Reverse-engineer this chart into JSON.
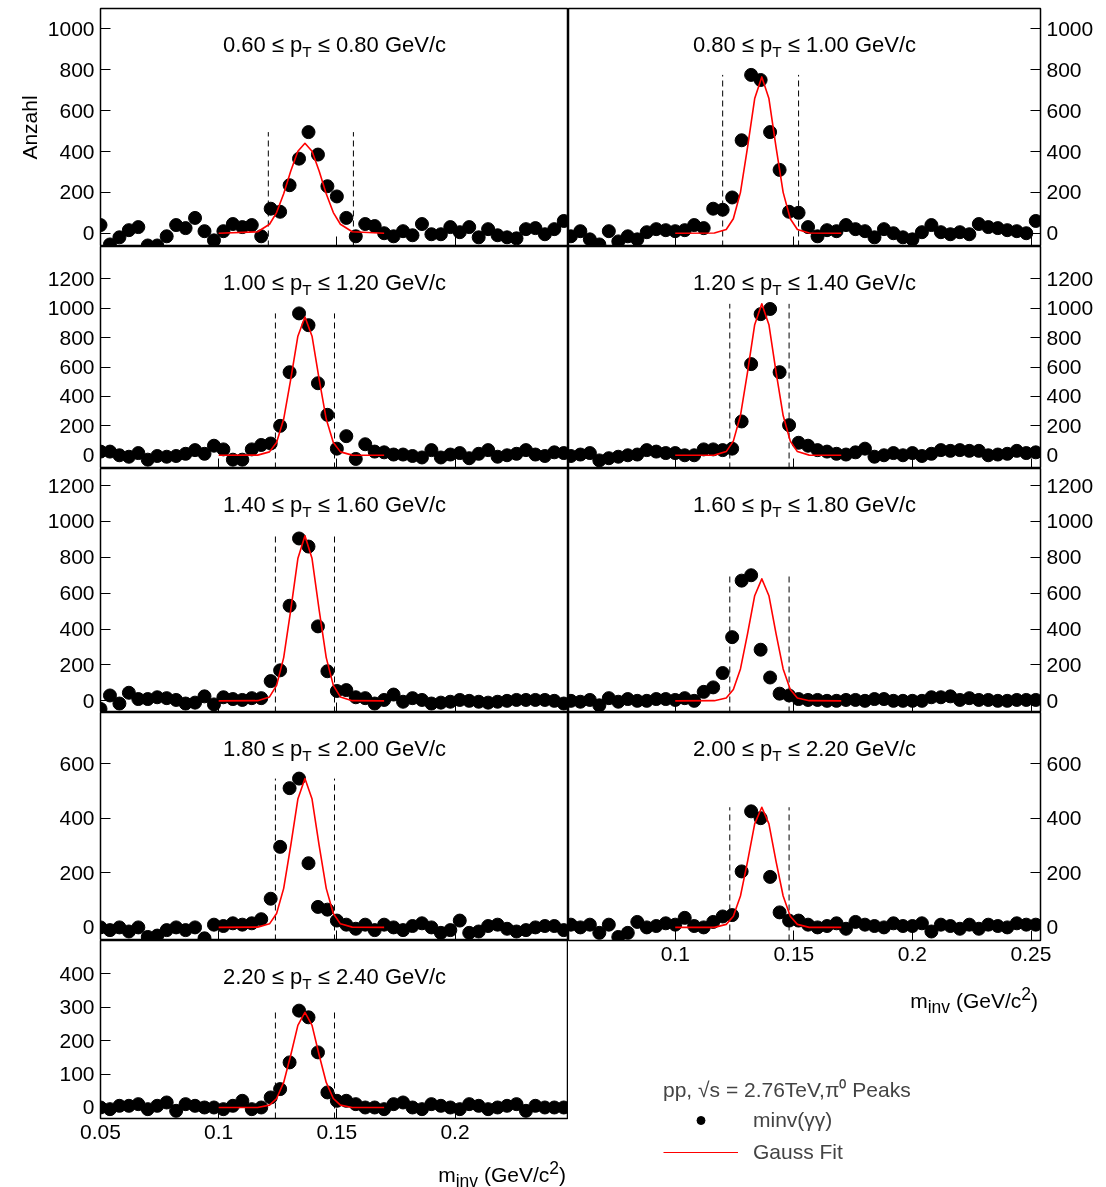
{
  "chart_data": [
    {
      "type": "scatter",
      "title": "0.60 ≤ p$_{T}$ ≤ 0.80 GeV/c",
      "ylabel": "Anzahl",
      "xlim": [
        0.05,
        0.248
      ],
      "ylim": [
        -65,
        1100
      ],
      "xticks": [
        0.05,
        0.1,
        0.15,
        0.2
      ],
      "yticks": [
        0,
        200,
        400,
        600,
        800,
        1000
      ],
      "tick_labels": "y",
      "series": [
        {
          "color": "#000000",
          "x": [
            0.05,
            0.054,
            0.058,
            0.062,
            0.066,
            0.07,
            0.074,
            0.078,
            0.082,
            0.086,
            0.09,
            0.094,
            0.098,
            0.102,
            0.106,
            0.11,
            0.114,
            0.118,
            0.122,
            0.126,
            0.13,
            0.134,
            0.138,
            0.142,
            0.146,
            0.15,
            0.154,
            0.158,
            0.162,
            0.166,
            0.17,
            0.174,
            0.178,
            0.182,
            0.186,
            0.19,
            0.194,
            0.198,
            0.202,
            0.206,
            0.21,
            0.214,
            0.218,
            0.222,
            0.226,
            0.23,
            0.234,
            0.238,
            0.242,
            0.246
          ],
          "marker": "circle",
          "values": [
            40,
            -55,
            -20,
            15,
            30,
            -60,
            -60,
            -15,
            40,
            25,
            75,
            10,
            -35,
            10,
            45,
            30,
            40,
            -15,
            120,
            105,
            235,
            365,
            495,
            385,
            230,
            180,
            75,
            -15,
            45,
            35,
            0,
            -15,
            10,
            -10,
            45,
            -5,
            -5,
            30,
            5,
            30,
            -20,
            20,
            -10,
            -20,
            -25,
            20,
            25,
            -5,
            20,
            60
          ]
        },
        {
          "type": "line",
          "color": "#ff0000",
          "x": [
            0.1,
            0.1165,
            0.1215,
            0.1245,
            0.1275,
            0.1305,
            0.1335,
            0.1365,
            0.1395,
            0.1425,
            0.1455,
            0.1485,
            0.1515,
            0.1565,
            0.17
          ],
          "values": [
            0,
            7,
            44,
            101,
            193,
            305,
            401,
            440,
            401,
            305,
            193,
            101,
            44,
            7,
            0
          ]
        }
      ],
      "ref_lines": [
        {
          "axis": "x",
          "value": 0.121,
          "color": "#000000",
          "line_style": "dashed"
        },
        {
          "axis": "x",
          "value": 0.157,
          "color": "#000000",
          "line_style": "dashed"
        }
      ]
    },
    {
      "type": "scatter",
      "title": "0.80 ≤ p$_{T}$ ≤ 1.00 GeV/c",
      "xlim": [
        0.055,
        0.254
      ],
      "ylim": [
        -65,
        1100
      ],
      "xticks": [
        0.1,
        0.15,
        0.2,
        0.25
      ],
      "yticks": [
        0,
        200,
        400,
        600,
        800,
        1000
      ],
      "tick_labels": "y",
      "series": [
        {
          "color": "#000000",
          "x": [
            0.056,
            0.06,
            0.064,
            0.068,
            0.072,
            0.076,
            0.08,
            0.084,
            0.088,
            0.092,
            0.096,
            0.1,
            0.104,
            0.108,
            0.112,
            0.116,
            0.12,
            0.124,
            0.128,
            0.132,
            0.136,
            0.14,
            0.144,
            0.148,
            0.152,
            0.156,
            0.16,
            0.164,
            0.168,
            0.172,
            0.176,
            0.18,
            0.184,
            0.188,
            0.192,
            0.196,
            0.2,
            0.204,
            0.208,
            0.212,
            0.216,
            0.22,
            0.224,
            0.228,
            0.232,
            0.236,
            0.24,
            0.244,
            0.248,
            0.252
          ],
          "marker": "circle",
          "values": [
            -15,
            10,
            -30,
            -55,
            10,
            -40,
            -15,
            -30,
            5,
            20,
            15,
            10,
            15,
            40,
            25,
            120,
            115,
            175,
            455,
            775,
            750,
            495,
            310,
            105,
            100,
            30,
            -15,
            15,
            10,
            40,
            20,
            10,
            -20,
            20,
            0,
            -20,
            -30,
            5,
            40,
            5,
            -5,
            5,
            -5,
            45,
            30,
            25,
            15,
            10,
            0,
            60
          ]
        },
        {
          "type": "line",
          "color": "#ff0000",
          "x": [
            0.1,
            0.1165,
            0.1215,
            0.1245,
            0.1275,
            0.1305,
            0.1335,
            0.1365,
            0.1395,
            0.1425,
            0.1455,
            0.1485,
            0.1515,
            0.1565,
            0.17
          ],
          "values": [
            0,
            1,
            18,
            71,
            200,
            422,
            659,
            765,
            659,
            422,
            200,
            71,
            18,
            1,
            0
          ]
        }
      ],
      "ref_lines": [
        {
          "axis": "x",
          "value": 0.12,
          "color": "#000000",
          "line_style": "dashed"
        },
        {
          "axis": "x",
          "value": 0.152,
          "color": "#000000",
          "line_style": "dashed"
        }
      ]
    },
    {
      "type": "scatter",
      "title": "1.00 ≤ p$_{T}$ ≤ 1.20 GeV/c",
      "xlim": [
        0.05,
        0.248
      ],
      "ylim": [
        -90,
        1420
      ],
      "xticks": [
        0.05,
        0.1,
        0.15,
        0.2
      ],
      "yticks": [
        0,
        200,
        400,
        600,
        800,
        1000,
        1200
      ],
      "tick_labels": "y",
      "series": [
        {
          "color": "#000000",
          "x": [
            0.05,
            0.054,
            0.058,
            0.062,
            0.066,
            0.07,
            0.074,
            0.078,
            0.082,
            0.086,
            0.09,
            0.094,
            0.098,
            0.102,
            0.106,
            0.11,
            0.114,
            0.118,
            0.122,
            0.126,
            0.13,
            0.134,
            0.138,
            0.142,
            0.146,
            0.15,
            0.154,
            0.158,
            0.162,
            0.166,
            0.17,
            0.174,
            0.178,
            0.182,
            0.186,
            0.19,
            0.194,
            0.198,
            0.202,
            0.206,
            0.21,
            0.214,
            0.218,
            0.222,
            0.226,
            0.23,
            0.234,
            0.238,
            0.242,
            0.246
          ],
          "marker": "circle",
          "values": [
            25,
            25,
            0,
            -10,
            15,
            -30,
            -5,
            -10,
            -5,
            10,
            35,
            10,
            65,
            40,
            -30,
            -30,
            40,
            70,
            80,
            200,
            565,
            965,
            885,
            490,
            275,
            45,
            130,
            -25,
            75,
            25,
            20,
            5,
            5,
            -5,
            -15,
            35,
            -15,
            5,
            15,
            -20,
            10,
            35,
            -10,
            0,
            10,
            35,
            5,
            -5,
            20,
            15
          ]
        },
        {
          "type": "line",
          "color": "#ff0000",
          "x": [
            0.1,
            0.1165,
            0.1215,
            0.1245,
            0.1275,
            0.1305,
            0.1335,
            0.1365,
            0.1395,
            0.1425,
            0.1455,
            0.1485,
            0.1515,
            0.1565,
            0.17
          ],
          "values": [
            0,
            1,
            23,
            87,
            246,
            518,
            810,
            940,
            810,
            518,
            246,
            87,
            23,
            1,
            0
          ]
        }
      ],
      "ref_lines": [
        {
          "axis": "x",
          "value": 0.124,
          "color": "#000000",
          "line_style": "dashed"
        },
        {
          "axis": "x",
          "value": 0.149,
          "color": "#000000",
          "line_style": "dashed"
        }
      ]
    },
    {
      "type": "scatter",
      "title": "1.20 ≤ p$_{T}$ ≤ 1.40 GeV/c",
      "xlim": [
        0.055,
        0.254
      ],
      "ylim": [
        -90,
        1420
      ],
      "xticks": [
        0.1,
        0.15,
        0.2,
        0.25
      ],
      "yticks": [
        0,
        200,
        400,
        600,
        800,
        1000,
        1200
      ],
      "tick_labels": "y",
      "series": [
        {
          "color": "#000000",
          "x": [
            0.056,
            0.06,
            0.064,
            0.068,
            0.072,
            0.076,
            0.08,
            0.084,
            0.088,
            0.092,
            0.096,
            0.1,
            0.104,
            0.108,
            0.112,
            0.116,
            0.12,
            0.124,
            0.128,
            0.132,
            0.136,
            0.14,
            0.144,
            0.148,
            0.152,
            0.156,
            0.16,
            0.164,
            0.168,
            0.172,
            0.176,
            0.18,
            0.184,
            0.188,
            0.192,
            0.196,
            0.2,
            0.204,
            0.208,
            0.212,
            0.216,
            0.22,
            0.224,
            0.228,
            0.232,
            0.236,
            0.24,
            0.244,
            0.248,
            0.252
          ],
          "marker": "circle",
          "values": [
            -5,
            5,
            15,
            -35,
            -20,
            -10,
            0,
            5,
            35,
            25,
            15,
            15,
            0,
            0,
            40,
            40,
            35,
            45,
            230,
            620,
            960,
            995,
            565,
            205,
            85,
            65,
            35,
            25,
            10,
            5,
            20,
            45,
            -10,
            0,
            15,
            0,
            15,
            -5,
            10,
            35,
            30,
            35,
            30,
            30,
            0,
            5,
            10,
            30,
            15,
            20
          ]
        },
        {
          "type": "line",
          "color": "#ff0000",
          "x": [
            0.1,
            0.1165,
            0.1215,
            0.1245,
            0.1275,
            0.1305,
            0.1335,
            0.1365,
            0.1395,
            0.1425,
            0.1455,
            0.1485,
            0.1515,
            0.1565,
            0.17
          ],
          "values": [
            0,
            1,
            25,
            96,
            270,
            568,
            888,
            1030,
            888,
            568,
            270,
            96,
            25,
            1,
            0
          ]
        }
      ],
      "ref_lines": [
        {
          "axis": "x",
          "value": 0.123,
          "color": "#000000",
          "line_style": "dashed"
        },
        {
          "axis": "x",
          "value": 0.148,
          "color": "#000000",
          "line_style": "dashed"
        }
      ]
    },
    {
      "type": "scatter",
      "title": "1.40 ≤ p$_{T}$ ≤ 1.60 GeV/c",
      "xlim": [
        0.05,
        0.248
      ],
      "ylim": [
        -65,
        1295
      ],
      "xticks": [
        0.05,
        0.1,
        0.15,
        0.2
      ],
      "yticks": [
        0,
        200,
        400,
        600,
        800,
        1000,
        1200
      ],
      "tick_labels": "y",
      "series": [
        {
          "color": "#000000",
          "x": [
            0.05,
            0.054,
            0.058,
            0.062,
            0.066,
            0.07,
            0.074,
            0.078,
            0.082,
            0.086,
            0.09,
            0.094,
            0.098,
            0.102,
            0.106,
            0.11,
            0.114,
            0.118,
            0.122,
            0.126,
            0.13,
            0.134,
            0.138,
            0.142,
            0.146,
            0.15,
            0.154,
            0.158,
            0.162,
            0.166,
            0.17,
            0.174,
            0.178,
            0.182,
            0.186,
            0.19,
            0.194,
            0.198,
            0.202,
            0.206,
            0.21,
            0.214,
            0.218,
            0.222,
            0.226,
            0.23,
            0.234,
            0.238,
            0.242,
            0.246
          ],
          "marker": "circle",
          "values": [
            -45,
            30,
            -15,
            45,
            10,
            10,
            20,
            15,
            5,
            -15,
            -10,
            25,
            -20,
            20,
            10,
            5,
            15,
            15,
            110,
            170,
            530,
            905,
            860,
            415,
            165,
            55,
            60,
            20,
            15,
            -15,
            5,
            35,
            -5,
            15,
            5,
            -15,
            -10,
            -5,
            5,
            0,
            -5,
            -10,
            -5,
            0,
            5,
            5,
            5,
            5,
            0,
            -15
          ]
        },
        {
          "type": "line",
          "color": "#ff0000",
          "x": [
            0.1,
            0.1165,
            0.1215,
            0.1245,
            0.1275,
            0.1305,
            0.1335,
            0.1365,
            0.1395,
            0.1425,
            0.1455,
            0.1485,
            0.1515,
            0.1565,
            0.17
          ],
          "values": [
            0,
            1,
            22,
            86,
            241,
            507,
            793,
            920,
            793,
            507,
            241,
            86,
            22,
            1,
            0
          ]
        }
      ],
      "ref_lines": [
        {
          "axis": "x",
          "value": 0.124,
          "color": "#000000",
          "line_style": "dashed"
        },
        {
          "axis": "x",
          "value": 0.149,
          "color": "#000000",
          "line_style": "dashed"
        }
      ]
    },
    {
      "type": "scatter",
      "title": "1.60 ≤ p$_{T}$ ≤ 1.80 GeV/c",
      "xlim": [
        0.055,
        0.254
      ],
      "ylim": [
        -65,
        1295
      ],
      "xticks": [
        0.1,
        0.15,
        0.2,
        0.25
      ],
      "yticks": [
        0,
        200,
        400,
        600,
        800,
        1000,
        1200
      ],
      "tick_labels": "y",
      "series": [
        {
          "color": "#000000",
          "x": [
            0.056,
            0.06,
            0.064,
            0.068,
            0.072,
            0.076,
            0.08,
            0.084,
            0.088,
            0.092,
            0.096,
            0.1,
            0.104,
            0.108,
            0.112,
            0.116,
            0.12,
            0.124,
            0.128,
            0.132,
            0.136,
            0.14,
            0.144,
            0.148,
            0.152,
            0.156,
            0.16,
            0.164,
            0.168,
            0.172,
            0.176,
            0.18,
            0.184,
            0.188,
            0.192,
            0.196,
            0.2,
            0.204,
            0.208,
            0.212,
            0.216,
            0.22,
            0.224,
            0.228,
            0.232,
            0.236,
            0.24,
            0.244,
            0.248,
            0.252
          ],
          "marker": "circle",
          "values": [
            0,
            -5,
            5,
            -25,
            15,
            -5,
            10,
            0,
            0,
            10,
            10,
            5,
            15,
            0,
            50,
            75,
            155,
            355,
            670,
            700,
            285,
            130,
            40,
            30,
            10,
            5,
            5,
            0,
            0,
            5,
            5,
            0,
            10,
            10,
            0,
            0,
            0,
            0,
            20,
            20,
            25,
            5,
            15,
            5,
            5,
            0,
            0,
            5,
            5,
            5
          ]
        },
        {
          "type": "line",
          "color": "#ff0000",
          "x": [
            0.1,
            0.1165,
            0.1215,
            0.1245,
            0.1275,
            0.1305,
            0.1335,
            0.1365,
            0.1395,
            0.1425,
            0.1455,
            0.1485,
            0.1515,
            0.1565,
            0.17
          ],
          "values": [
            0,
            1,
            16,
            63,
            178,
            375,
            586,
            680,
            586,
            375,
            178,
            63,
            16,
            1,
            0
          ]
        }
      ],
      "ref_lines": [
        {
          "axis": "x",
          "value": 0.123,
          "color": "#000000",
          "line_style": "dashed"
        },
        {
          "axis": "x",
          "value": 0.148,
          "color": "#000000",
          "line_style": "dashed"
        }
      ]
    },
    {
      "type": "scatter",
      "title": "1.80 ≤ p$_{T}$ ≤ 2.00 GeV/c",
      "xlim": [
        0.05,
        0.248
      ],
      "ylim": [
        -48,
        787
      ],
      "xticks": [
        0.05,
        0.1,
        0.15,
        0.2
      ],
      "yticks": [
        0,
        200,
        400,
        600
      ],
      "tick_labels": "y",
      "series": [
        {
          "color": "#000000",
          "x": [
            0.05,
            0.054,
            0.058,
            0.062,
            0.066,
            0.07,
            0.074,
            0.078,
            0.082,
            0.086,
            0.09,
            0.094,
            0.098,
            0.102,
            0.106,
            0.11,
            0.114,
            0.118,
            0.122,
            0.126,
            0.13,
            0.134,
            0.138,
            0.142,
            0.146,
            0.15,
            0.154,
            0.158,
            0.162,
            0.166,
            0.17,
            0.174,
            0.178,
            0.182,
            0.186,
            0.19,
            0.194,
            0.198,
            0.202,
            0.206,
            0.21,
            0.214,
            0.218,
            0.222,
            0.226,
            0.23,
            0.234,
            0.238,
            0.242,
            0.246
          ],
          "marker": "circle",
          "values": [
            0,
            -10,
            0,
            -15,
            0,
            -35,
            -30,
            -10,
            0,
            -10,
            0,
            -40,
            10,
            5,
            15,
            10,
            15,
            30,
            105,
            295,
            510,
            545,
            235,
            75,
            65,
            25,
            10,
            -5,
            10,
            -10,
            10,
            0,
            -10,
            5,
            15,
            0,
            -20,
            -10,
            25,
            -20,
            -15,
            5,
            10,
            -5,
            -15,
            -10,
            0,
            5,
            5,
            -10
          ]
        },
        {
          "type": "line",
          "color": "#ff0000",
          "x": [
            0.1,
            0.1165,
            0.1215,
            0.1245,
            0.1275,
            0.1305,
            0.1335,
            0.1365,
            0.1395,
            0.1425,
            0.1455,
            0.1485,
            0.1515,
            0.1565,
            0.17
          ],
          "values": [
            0,
            1,
            13,
            51,
            143,
            300,
            470,
            545,
            470,
            300,
            143,
            51,
            13,
            1,
            0
          ]
        }
      ],
      "ref_lines": [
        {
          "axis": "x",
          "value": 0.124,
          "color": "#000000",
          "line_style": "dashed"
        },
        {
          "axis": "x",
          "value": 0.149,
          "color": "#000000",
          "line_style": "dashed"
        }
      ]
    },
    {
      "type": "scatter",
      "title": "2.00 ≤ p$_{T}$ ≤ 2.20 GeV/c",
      "xlabel": "m$_{inv}$ (GeV/c$^{2}$)",
      "xlim": [
        0.055,
        0.254
      ],
      "ylim": [
        -48,
        787
      ],
      "xticks": [
        0.1,
        0.15,
        0.2,
        0.25
      ],
      "yticks": [
        0,
        200,
        400,
        600
      ],
      "series": [
        {
          "color": "#000000",
          "x": [
            0.056,
            0.06,
            0.064,
            0.068,
            0.072,
            0.076,
            0.08,
            0.084,
            0.088,
            0.092,
            0.096,
            0.1,
            0.104,
            0.108,
            0.112,
            0.116,
            0.12,
            0.124,
            0.128,
            0.132,
            0.136,
            0.14,
            0.144,
            0.148,
            0.152,
            0.156,
            0.16,
            0.164,
            0.168,
            0.172,
            0.176,
            0.18,
            0.184,
            0.188,
            0.192,
            0.196,
            0.2,
            0.204,
            0.208,
            0.212,
            0.216,
            0.22,
            0.224,
            0.228,
            0.232,
            0.236,
            0.24,
            0.244,
            0.248,
            0.252
          ],
          "marker": "circle",
          "values": [
            10,
            0,
            10,
            -20,
            10,
            -35,
            -20,
            20,
            0,
            5,
            15,
            10,
            35,
            5,
            0,
            20,
            40,
            45,
            205,
            425,
            400,
            185,
            55,
            25,
            25,
            10,
            0,
            5,
            15,
            -5,
            20,
            10,
            5,
            0,
            15,
            5,
            5,
            15,
            -15,
            10,
            5,
            -5,
            10,
            -5,
            10,
            5,
            0,
            15,
            10,
            10
          ]
        },
        {
          "type": "line",
          "color": "#ff0000",
          "x": [
            0.1,
            0.1165,
            0.1215,
            0.1245,
            0.1275,
            0.1305,
            0.1335,
            0.1365,
            0.1395,
            0.1425,
            0.1455,
            0.1485,
            0.1515,
            0.1565,
            0.17
          ],
          "values": [
            0,
            0,
            11,
            41,
            115,
            242,
            379,
            440,
            379,
            242,
            115,
            41,
            11,
            0,
            0
          ]
        }
      ],
      "ref_lines": [
        {
          "axis": "x",
          "value": 0.123,
          "color": "#000000",
          "line_style": "dashed"
        },
        {
          "axis": "x",
          "value": 0.148,
          "color": "#000000",
          "line_style": "dashed"
        }
      ]
    },
    {
      "type": "scatter",
      "title": "2.20 ≤ p$_{T}$ ≤ 2.40 GeV/c",
      "xlabel": "m$_{inv}$ (GeV/c$^{2}$)",
      "legend_title": "pp, √s = 2.76TeV,π⁰ Peaks",
      "legend": "right",
      "xlim": [
        0.05,
        0.248
      ],
      "ylim": [
        -33,
        500
      ],
      "xticks": [
        0.05,
        0.1,
        0.15,
        0.2
      ],
      "yticks": [
        0,
        100,
        200,
        300,
        400
      ],
      "series": [
        {
          "name": "minv(γγ)",
          "marker": "circle",
          "color": "#000000",
          "x": [
            0.05,
            0.054,
            0.058,
            0.062,
            0.066,
            0.07,
            0.074,
            0.078,
            0.082,
            0.086,
            0.09,
            0.094,
            0.098,
            0.102,
            0.106,
            0.11,
            0.114,
            0.118,
            0.122,
            0.126,
            0.13,
            0.134,
            0.138,
            0.142,
            0.146,
            0.15,
            0.154,
            0.158,
            0.162,
            0.166,
            0.17,
            0.174,
            0.178,
            0.182,
            0.186,
            0.19,
            0.194,
            0.198,
            0.202,
            0.206,
            0.21,
            0.214,
            0.218,
            0.222,
            0.226,
            0.23,
            0.234,
            0.238,
            0.242,
            0.246
          ],
          "values": [
            0,
            -5,
            5,
            5,
            10,
            -5,
            5,
            15,
            -10,
            10,
            5,
            0,
            0,
            -5,
            5,
            20,
            -5,
            0,
            30,
            55,
            135,
            290,
            270,
            165,
            45,
            20,
            20,
            10,
            0,
            0,
            -5,
            10,
            15,
            0,
            -5,
            10,
            5,
            0,
            -5,
            10,
            5,
            -5,
            0,
            5,
            10,
            -10,
            5,
            0,
            0,
            0
          ]
        },
        {
          "name": "Gauss Fit",
          "type": "line",
          "color": "#ff0000",
          "x": [
            0.1,
            0.1165,
            0.1215,
            0.1245,
            0.1275,
            0.1305,
            0.1335,
            0.1365,
            0.1395,
            0.1425,
            0.1455,
            0.1485,
            0.1515,
            0.1565,
            0.17
          ],
          "values": [
            0,
            0,
            7,
            27,
            75,
            157,
            246,
            285,
            246,
            157,
            75,
            27,
            7,
            0,
            0
          ]
        }
      ],
      "ref_lines": [
        {
          "axis": "x",
          "value": 0.124,
          "color": "#000000",
          "line_style": "dashed"
        },
        {
          "axis": "x",
          "value": 0.149,
          "color": "#000000",
          "line_style": "dashed"
        }
      ]
    }
  ]
}
